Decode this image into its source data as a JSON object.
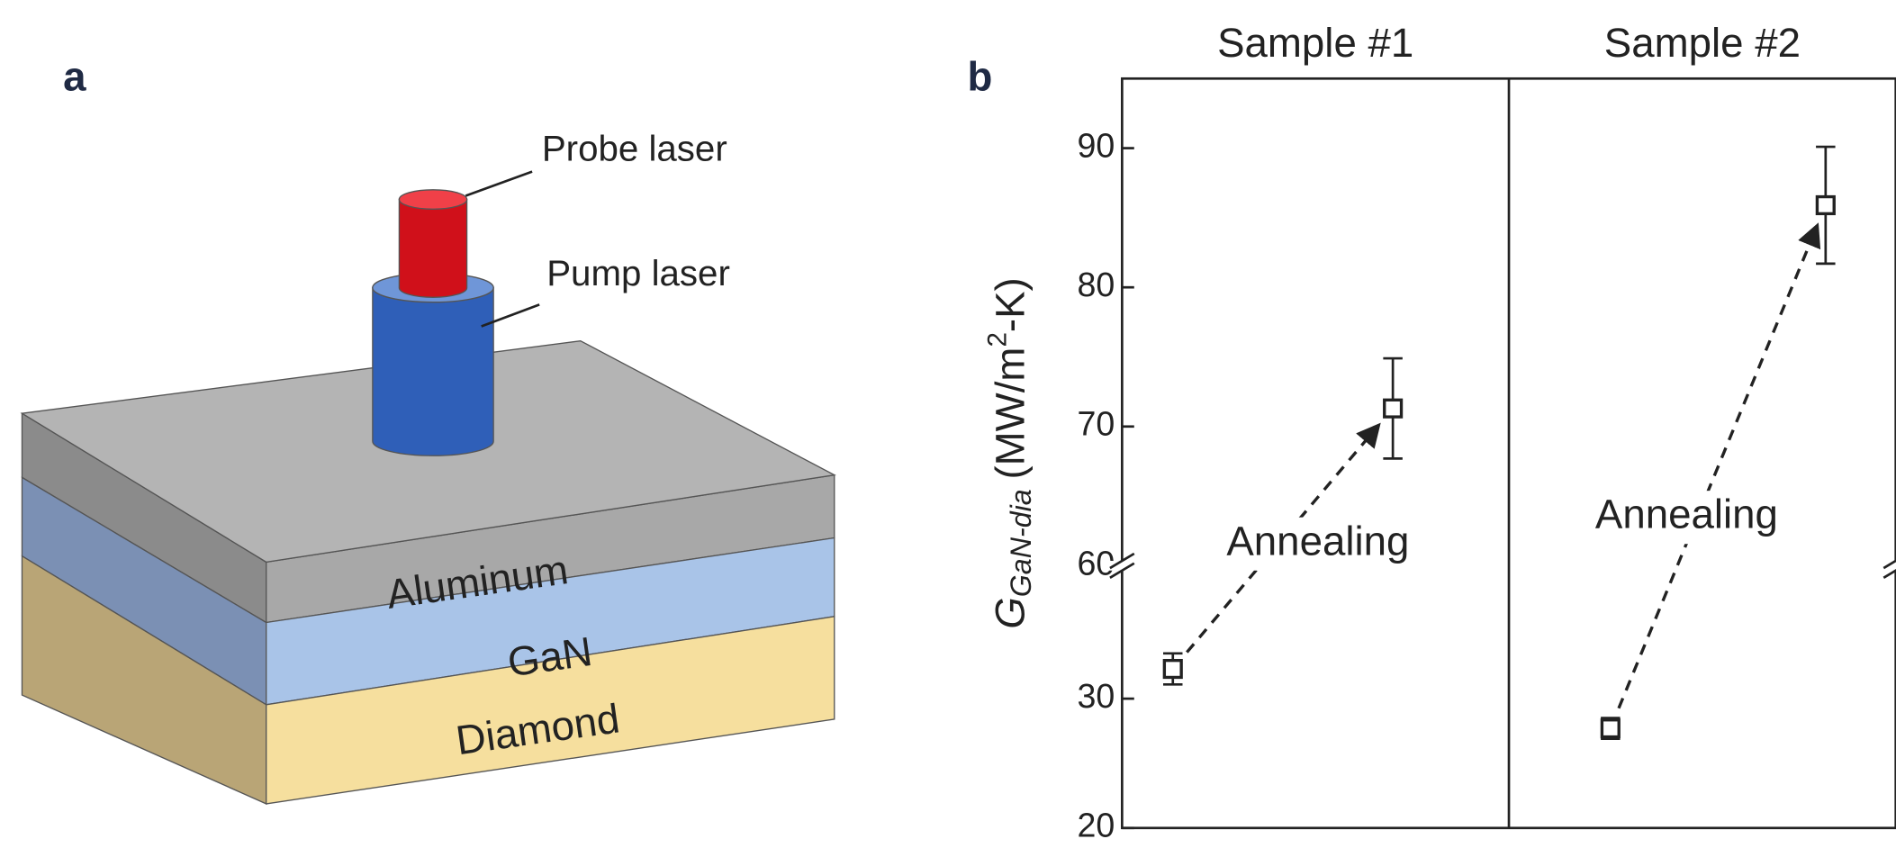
{
  "panel_labels": [
    "a",
    "b"
  ],
  "diagram": {
    "beams": [
      "Probe laser",
      "Pump laser"
    ],
    "layers": [
      "Aluminum",
      "GaN",
      "Diamond"
    ]
  },
  "chart_data": {
    "type": "scatter",
    "ylabel": {
      "symbol": "G",
      "subscript": "GaN-dia",
      "unit_pre": "(MW/m",
      "unit_sup": "2",
      "unit_post": "-K)"
    },
    "y_segments": [
      {
        "ylim": [
          20,
          40
        ],
        "yticks": [
          20,
          30
        ]
      },
      {
        "ylim": [
          60,
          95
        ],
        "yticks": [
          60,
          70,
          80,
          90
        ]
      }
    ],
    "color": "#222222",
    "panels": [
      {
        "title": "Sample #1",
        "annotation": "Annealing",
        "values": [
          32.3,
          71.3
        ],
        "errors": [
          1.2,
          3.6
        ]
      },
      {
        "title": "Sample #2",
        "annotation": "Annealing",
        "values": [
          27.7,
          85.9
        ],
        "errors": [
          0.8,
          4.2
        ]
      }
    ]
  }
}
